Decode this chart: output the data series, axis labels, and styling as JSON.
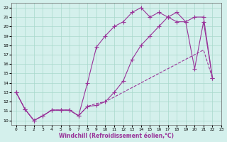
{
  "background_color": "#d4f0ec",
  "grid_color": "#a8d8cc",
  "line_color": "#993399",
  "xlabel": "Windchill (Refroidissement éolien,°C)",
  "xlim": [
    -0.5,
    23
  ],
  "ylim": [
    9.5,
    22.5
  ],
  "yticks": [
    10,
    11,
    12,
    13,
    14,
    15,
    16,
    17,
    18,
    19,
    20,
    21,
    22
  ],
  "xticks": [
    0,
    1,
    2,
    3,
    4,
    5,
    6,
    7,
    8,
    9,
    10,
    11,
    12,
    13,
    14,
    15,
    16,
    17,
    18,
    19,
    20,
    21,
    22,
    23
  ],
  "line1_x": [
    0,
    1,
    2,
    3,
    4,
    5,
    6,
    7,
    8,
    9,
    10,
    11,
    12,
    13,
    14,
    15,
    16,
    17,
    18,
    19,
    20,
    21,
    22
  ],
  "line1_y": [
    13,
    11.2,
    10,
    10.5,
    11.1,
    11.1,
    11.1,
    10.5,
    11.5,
    11.6,
    12,
    13,
    14.2,
    16.5,
    18,
    19,
    20,
    21,
    21.5,
    20.5,
    21,
    21,
    14.5
  ],
  "line2_x": [
    0,
    1,
    2,
    3,
    4,
    5,
    6,
    7,
    8,
    9,
    10,
    11,
    12,
    13,
    14,
    15,
    16,
    17,
    18,
    19,
    20,
    21,
    22
  ],
  "line2_y": [
    13,
    11.2,
    10,
    10.5,
    11.1,
    11.1,
    11.1,
    10.5,
    14,
    17.8,
    19,
    20,
    20.5,
    21.5,
    22,
    21,
    21.5,
    21,
    20.5,
    20.5,
    15.5,
    20.5,
    14.5
  ],
  "line3_x": [
    0,
    1,
    2,
    3,
    4,
    5,
    6,
    7,
    8,
    9,
    10,
    11,
    12,
    13,
    14,
    15,
    16,
    17,
    18,
    19,
    20,
    21,
    22
  ],
  "line3_y": [
    13,
    11.2,
    10,
    10.5,
    11.1,
    11.1,
    11.1,
    10.5,
    11.5,
    11.8,
    12,
    12.5,
    13,
    13.5,
    14,
    14.5,
    15,
    15.5,
    16,
    16.5,
    17,
    17.5,
    14.5
  ]
}
